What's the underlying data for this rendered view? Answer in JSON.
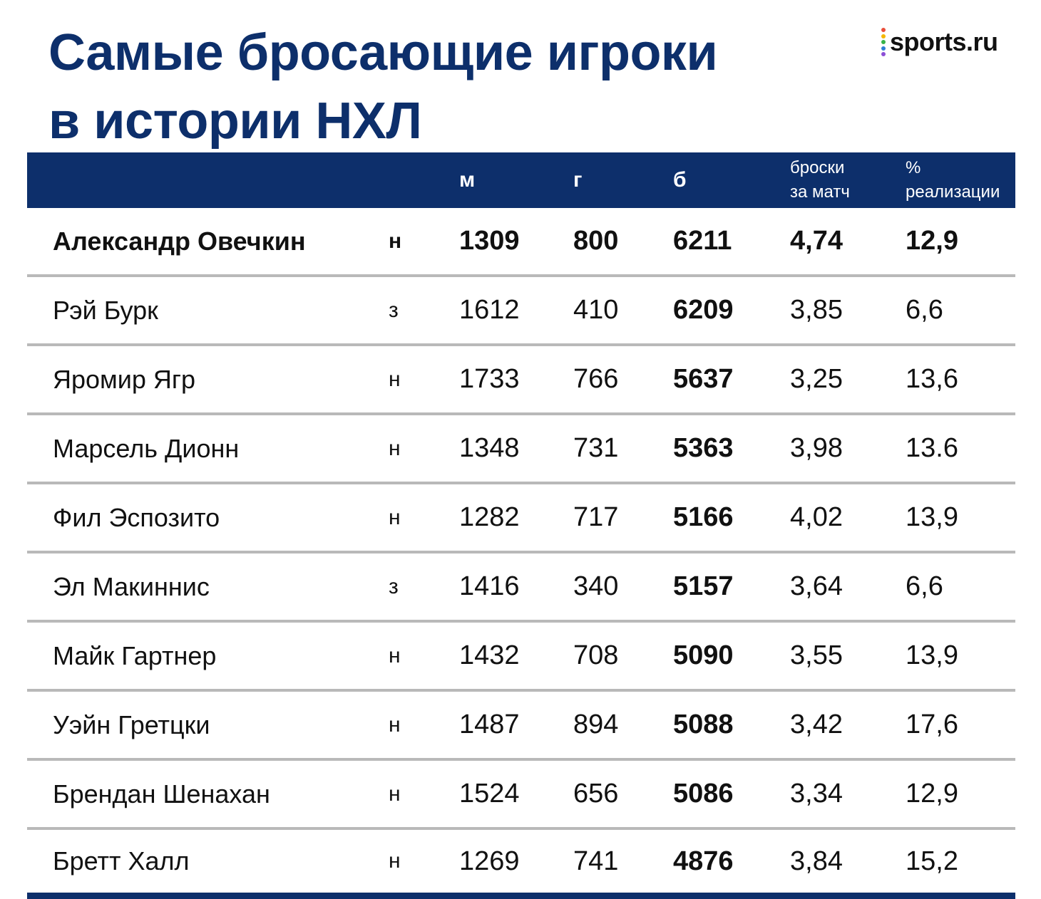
{
  "title_line1": "Самые бросающие игроки",
  "title_line2": "в истории НХЛ",
  "logo": {
    "text": "sports.ru",
    "dot_colors": [
      "#e94e3a",
      "#f5b700",
      "#37b34a",
      "#2f7fd6",
      "#8c4fd6"
    ]
  },
  "colors": {
    "header_bg": "#0d2f6b",
    "title": "#0d2f6b",
    "divider": "#b9b9b9"
  },
  "chart_data": {
    "type": "table",
    "columns": [
      "",
      "",
      "м",
      "г",
      "б",
      "броски за матч",
      "% реализации"
    ],
    "header": {
      "games": "м",
      "goals": "г",
      "shots": "б",
      "spg_line1": "броски",
      "spg_line2": "за матч",
      "pct_line1": "%",
      "pct_line2": "реализации"
    },
    "rows": [
      {
        "name": "Александр Овечкин",
        "pos": "н",
        "games": "1309",
        "goals": "800",
        "shots": "6211",
        "spg": "4,74",
        "pct": "12,9"
      },
      {
        "name": "Рэй Бурк",
        "pos": "з",
        "games": "1612",
        "goals": "410",
        "shots": "6209",
        "spg": "3,85",
        "pct": "6,6"
      },
      {
        "name": "Яромир Ягр",
        "pos": "н",
        "games": "1733",
        "goals": "766",
        "shots": "5637",
        "spg": "3,25",
        "pct": "13,6"
      },
      {
        "name": "Марсель Дионн",
        "pos": "н",
        "games": "1348",
        "goals": "731",
        "shots": "5363",
        "spg": "3,98",
        "pct": "13.6"
      },
      {
        "name": "Фил Эспозито",
        "pos": "н",
        "games": "1282",
        "goals": "717",
        "shots": "5166",
        "spg": "4,02",
        "pct": "13,9"
      },
      {
        "name": "Эл Макиннис",
        "pos": "з",
        "games": "1416",
        "goals": "340",
        "shots": "5157",
        "spg": "3,64",
        "pct": "6,6"
      },
      {
        "name": "Майк Гартнер",
        "pos": "н",
        "games": "1432",
        "goals": "708",
        "shots": "5090",
        "spg": "3,55",
        "pct": "13,9"
      },
      {
        "name": "Уэйн Гретцки",
        "pos": "н",
        "games": "1487",
        "goals": "894",
        "shots": "5088",
        "spg": "3,42",
        "pct": "17,6"
      },
      {
        "name": "Брендан Шенахан",
        "pos": "н",
        "games": "1524",
        "goals": "656",
        "shots": "5086",
        "spg": "3,34",
        "pct": "12,9"
      },
      {
        "name": "Бретт Халл",
        "pos": "н",
        "games": "1269",
        "goals": "741",
        "shots": "4876",
        "spg": "3,84",
        "pct": "15,2"
      }
    ]
  }
}
